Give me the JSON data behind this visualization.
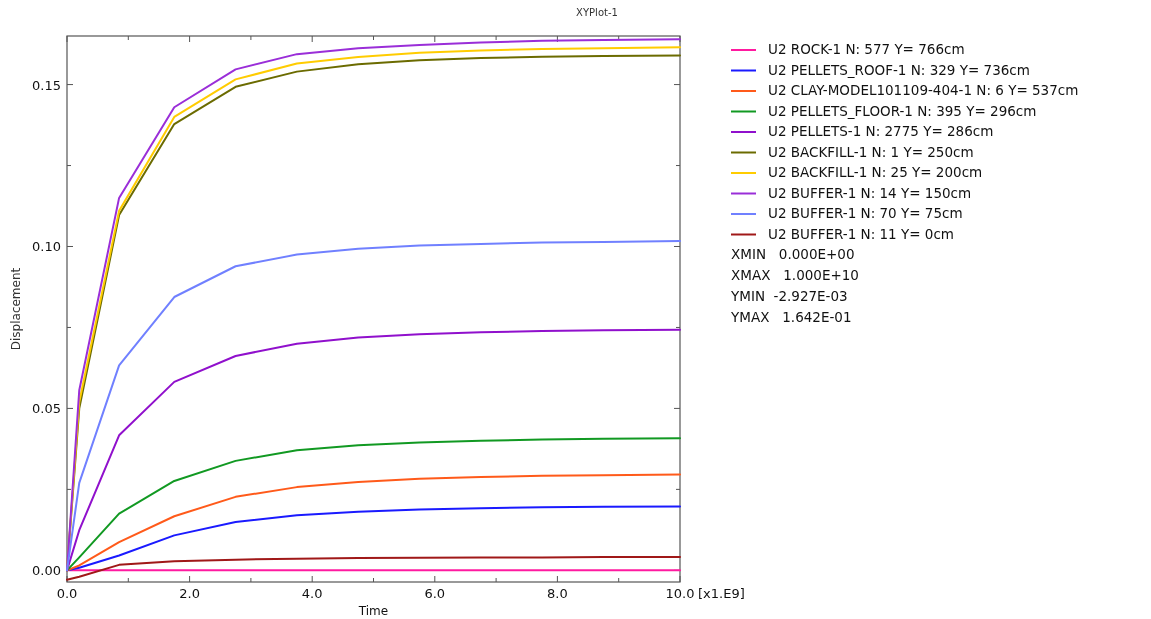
{
  "chart_data": {
    "type": "line",
    "title": "XYPlot-1",
    "xlabel": "Time",
    "ylabel": "Displacement",
    "annotations": [
      "[x1.E9]",
      "XMIN   0.000E+00",
      "XMAX   1.000E+10",
      "YMIN  -2.927E-03",
      "YMAX   1.642E-01"
    ],
    "x": [
      0,
      0.2,
      0.85,
      1.75,
      2.75,
      3.75,
      4.75,
      5.75,
      6.75,
      7.75,
      8.75,
      10
    ],
    "xlim": [
      0,
      10
    ],
    "ylim": [
      -0.0036,
      0.165
    ],
    "xticks": [
      {
        "value": 0,
        "label": "0.0"
      },
      {
        "value": 1,
        "label": null
      },
      {
        "value": 2,
        "label": "2.0"
      },
      {
        "value": 3,
        "label": null
      },
      {
        "value": 4,
        "label": "4.0"
      },
      {
        "value": 5,
        "label": null
      },
      {
        "value": 6,
        "label": "6.0"
      },
      {
        "value": 7,
        "label": null
      },
      {
        "value": 8,
        "label": "8.0"
      },
      {
        "value": 9,
        "label": null
      },
      {
        "value": 10,
        "label": "10.0"
      }
    ],
    "yticks": [
      {
        "value": 0,
        "label": "0.00"
      },
      {
        "value": 0.025,
        "label": null
      },
      {
        "value": 0.05,
        "label": "0.05"
      },
      {
        "value": 0.075,
        "label": null
      },
      {
        "value": 0.1,
        "label": "0.10"
      },
      {
        "value": 0.125,
        "label": null
      },
      {
        "value": 0.15,
        "label": "0.15"
      }
    ],
    "grid": false,
    "legend": "right",
    "marker": "none",
    "line_style": "solid",
    "series": [
      {
        "name": "U2 ROCK-1 N: 577 Y= 766cm",
        "color": "#ff1aa0",
        "values": [
          0,
          0,
          0,
          0,
          0,
          0,
          0,
          0,
          0,
          0,
          0,
          0
        ]
      },
      {
        "name": "U2 PELLETS_ROOF-1 N: 329 Y= 736cm",
        "color": "#1a1aff",
        "values": [
          0,
          0.0008,
          0.0046,
          0.0108,
          0.0149,
          0.017,
          0.0181,
          0.0188,
          0.0192,
          0.0195,
          0.0196,
          0.0197
        ]
      },
      {
        "name": "U2 CLAY-MODEL101109-404-1 N: 6 Y= 537cm",
        "color": "#ff5a1a",
        "values": [
          0,
          0.0015,
          0.0087,
          0.0167,
          0.0227,
          0.0257,
          0.0273,
          0.0283,
          0.0288,
          0.0292,
          0.0294,
          0.0296
        ]
      },
      {
        "name": "U2 PELLETS_FLOOR-1 N: 395 Y= 296cm",
        "color": "#119922",
        "values": [
          0,
          0.004,
          0.0175,
          0.0276,
          0.0338,
          0.0371,
          0.0386,
          0.0395,
          0.04,
          0.0404,
          0.0406,
          0.0408
        ]
      },
      {
        "name": "U2 PELLETS-1 N: 2775 Y= 286cm",
        "color": "#9010cc",
        "values": [
          0,
          0.0124,
          0.0417,
          0.0582,
          0.0662,
          0.07,
          0.0719,
          0.0729,
          0.0735,
          0.0739,
          0.0741,
          0.0743
        ]
      },
      {
        "name": "U2 BACKFILL-1 N: 1 Y= 250cm",
        "color": "#6b6b00",
        "values": [
          0,
          0.05,
          0.1097,
          0.1378,
          0.1493,
          0.154,
          0.1563,
          0.1575,
          0.1582,
          0.1586,
          0.1588,
          0.159
        ]
      },
      {
        "name": "U2 BACKFILL-1 N: 25 Y= 200cm",
        "color": "#ffcc00",
        "values": [
          0,
          0.052,
          0.111,
          0.14,
          0.1516,
          0.1565,
          0.1585,
          0.1598,
          0.1605,
          0.161,
          0.1612,
          0.1615
        ]
      },
      {
        "name": "U2 BUFFER-1 N: 14 Y= 150cm",
        "color": "#9a2ed8",
        "values": [
          0,
          0.0556,
          0.115,
          0.143,
          0.1547,
          0.1594,
          0.1612,
          0.1622,
          0.163,
          0.1635,
          0.1638,
          0.164
        ]
      },
      {
        "name": "U2 BUFFER-1 N: 70 Y= 75cm",
        "color": "#7080ff",
        "values": [
          0,
          0.027,
          0.0633,
          0.0844,
          0.0939,
          0.0975,
          0.0993,
          0.1003,
          0.1008,
          0.1012,
          0.1014,
          0.1017
        ]
      },
      {
        "name": "U2 BUFFER-1 N: 11 Y= 0cm",
        "color": "#a01818",
        "values": [
          -0.0029,
          -0.002,
          0.0017,
          0.0028,
          0.0033,
          0.0036,
          0.0038,
          0.0039,
          0.004,
          0.004,
          0.0041,
          0.0041
        ]
      }
    ]
  }
}
